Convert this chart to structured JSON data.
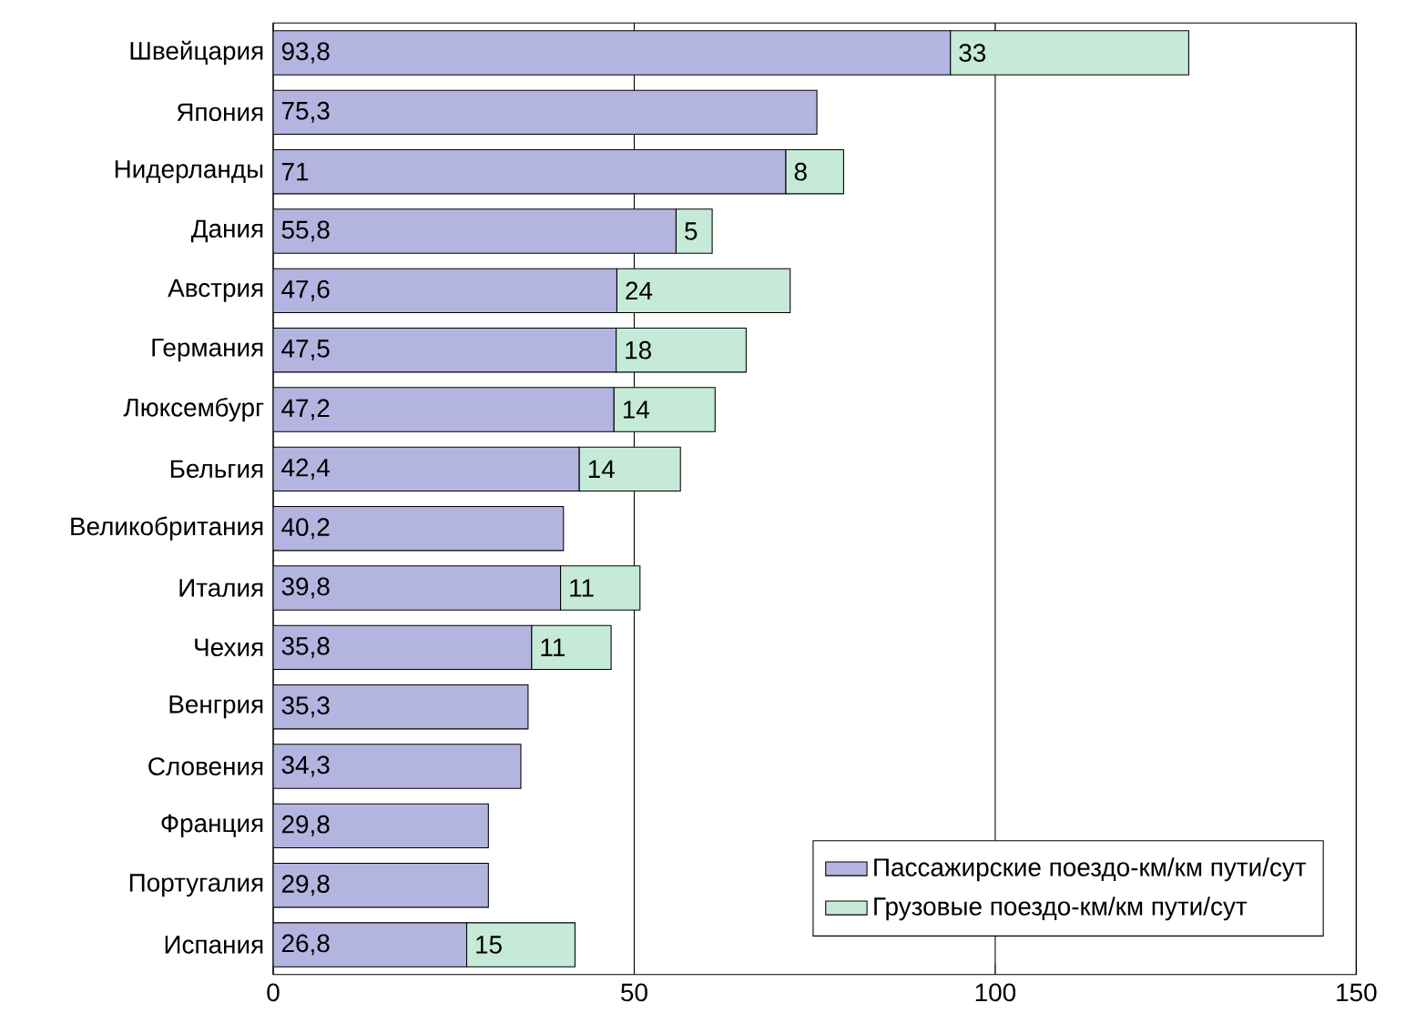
{
  "chart_data": {
    "type": "bar",
    "orientation": "horizontal",
    "stacked": true,
    "grid": "x",
    "legend": "bottom right",
    "categories": [
      "Швейцария",
      "Япония",
      "Нидерланды",
      "Дания",
      "Австрия",
      "Германия",
      "Люксембург",
      "Бельгия",
      "Великобритания",
      "Италия",
      "Чехия",
      "Венгрия",
      "Словения",
      "Франция",
      "Португалия",
      "Испания"
    ],
    "series": [
      {
        "name": "Пассажирские поездо-км/км пути/сут",
        "color": "#b4b4e0",
        "values": [
          93.8,
          75.3,
          71,
          55.8,
          47.6,
          47.5,
          47.2,
          42.4,
          40.2,
          39.8,
          35.8,
          35.3,
          34.3,
          29.8,
          29.8,
          26.8
        ],
        "value_labels": [
          "93,8",
          "75,3",
          "71",
          "55,8",
          "47,6",
          "47,5",
          "47,2",
          "42,4",
          "40,2",
          "39,8",
          "35,8",
          "35,3",
          "34,3",
          "29,8",
          "29,8",
          "26,8"
        ]
      },
      {
        "name": "Грузовые поездо-км/км пути/сут",
        "color": "#c6ead8",
        "values": [
          33,
          null,
          8,
          5,
          24,
          18,
          14,
          14,
          null,
          11,
          11,
          null,
          null,
          null,
          null,
          15
        ],
        "value_labels": [
          "33",
          null,
          "8",
          "5",
          "24",
          "18",
          "14",
          "14",
          null,
          "11",
          "11",
          null,
          null,
          null,
          null,
          "15"
        ]
      }
    ],
    "xlim": [
      0,
      150
    ],
    "xticks": [
      0,
      50,
      100,
      150
    ]
  }
}
